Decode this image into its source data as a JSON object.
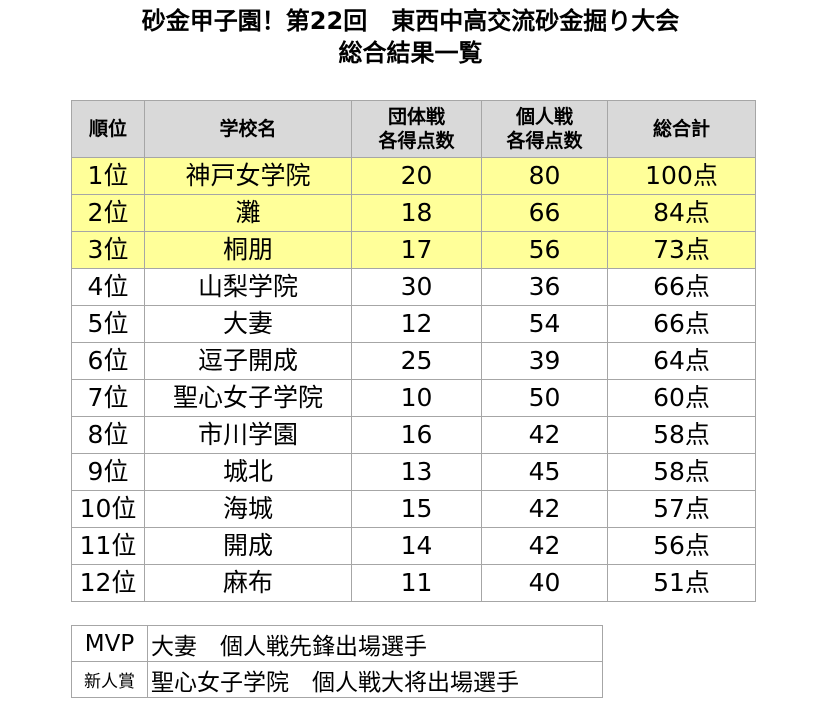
{
  "title": {
    "line1": "砂金甲子園！第22回　東西中高交流砂金掘り大会",
    "line2": "総合結果一覧"
  },
  "results_table": {
    "headers": {
      "rank": "順位",
      "school": "学校名",
      "team_line1": "団体戦",
      "team_line2": "各得点数",
      "individual_line1": "個人戦",
      "individual_line2": "各得点数",
      "total": "総合計"
    },
    "highlight_color": "#ffff99",
    "header_color": "#d9d9d9",
    "rows": [
      {
        "rank": "1位",
        "school": "神戸女学院",
        "team": "20",
        "individual": "80",
        "total": "100点"
      },
      {
        "rank": "2位",
        "school": "灘",
        "team": "18",
        "individual": "66",
        "total": "84点"
      },
      {
        "rank": "3位",
        "school": "桐朋",
        "team": "17",
        "individual": "56",
        "total": "73点"
      },
      {
        "rank": "4位",
        "school": "山梨学院",
        "team": "30",
        "individual": "36",
        "total": "66点"
      },
      {
        "rank": "5位",
        "school": "大妻",
        "team": "12",
        "individual": "54",
        "total": "66点"
      },
      {
        "rank": "6位",
        "school": "逗子開成",
        "team": "25",
        "individual": "39",
        "total": "64点"
      },
      {
        "rank": "7位",
        "school": "聖心女子学院",
        "team": "10",
        "individual": "50",
        "total": "60点"
      },
      {
        "rank": "8位",
        "school": "市川学園",
        "team": "16",
        "individual": "42",
        "total": "58点"
      },
      {
        "rank": "9位",
        "school": "城北",
        "team": "13",
        "individual": "45",
        "total": "58点"
      },
      {
        "rank": "10位",
        "school": "海城",
        "team": "15",
        "individual": "42",
        "total": "57点"
      },
      {
        "rank": "11位",
        "school": "開成",
        "team": "14",
        "individual": "42",
        "total": "56点"
      },
      {
        "rank": "12位",
        "school": "麻布",
        "team": "11",
        "individual": "40",
        "total": "51点"
      }
    ]
  },
  "awards": [
    {
      "label": "MVP",
      "text": "大妻　個人戦先鋒出場選手"
    },
    {
      "label": "新人賞",
      "text": "聖心女子学院　個人戦大将出場選手"
    }
  ]
}
